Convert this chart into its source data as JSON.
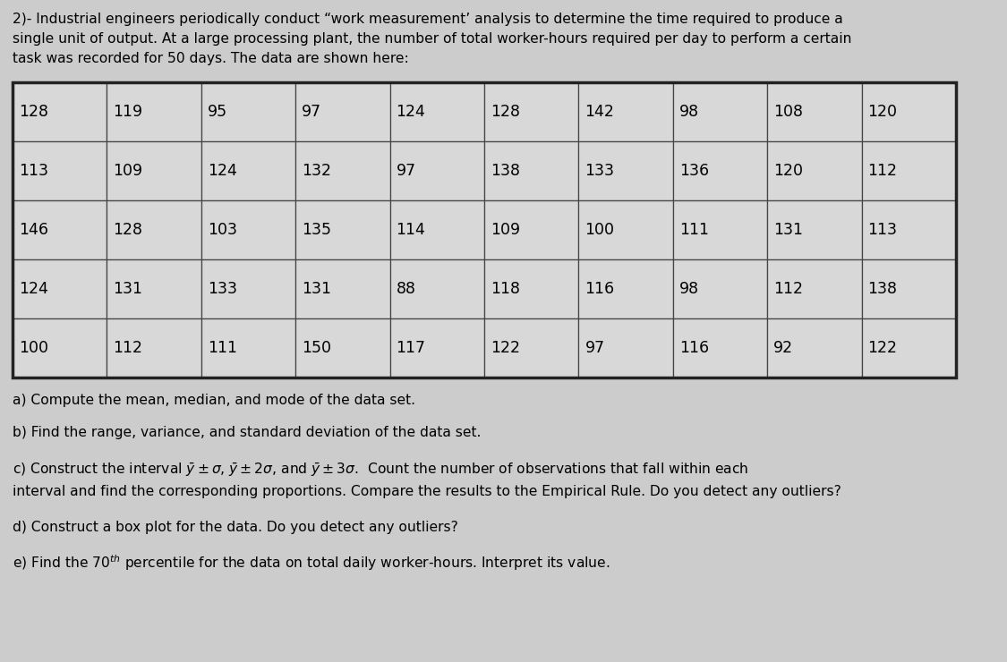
{
  "header_text": "2)- Industrial engineers periodically conduct “work measurement’ analysis to determine the time required to produce a\nsingle unit of output. At a large processing plant, the number of total worker-hours required per day to perform a certain\ntask was recorded for 50 days. The data are shown here:",
  "table_data": [
    [
      128,
      119,
      95,
      97,
      124,
      128,
      142,
      98,
      108,
      120
    ],
    [
      113,
      109,
      124,
      132,
      97,
      138,
      133,
      136,
      120,
      112
    ],
    [
      146,
      128,
      103,
      135,
      114,
      109,
      100,
      111,
      131,
      113
    ],
    [
      124,
      131,
      133,
      131,
      88,
      118,
      116,
      98,
      112,
      138
    ],
    [
      100,
      112,
      111,
      150,
      117,
      122,
      97,
      116,
      92,
      122
    ]
  ],
  "bg_color": "#cccccc",
  "cell_color": "#d8d8d8",
  "text_color": "#000000",
  "font_size_header": 11.2,
  "font_size_table": 12.5,
  "font_size_questions": 11.2,
  "header_line1": "2)- Industrial engineers periodically conduct “work measurement’ analysis to determine the time required to produce a",
  "header_line2": "single unit of output. At a large processing plant, the number of total worker-hours required per day to perform a certain",
  "header_line3": "task was recorded for 50 days. The data are shown here:"
}
